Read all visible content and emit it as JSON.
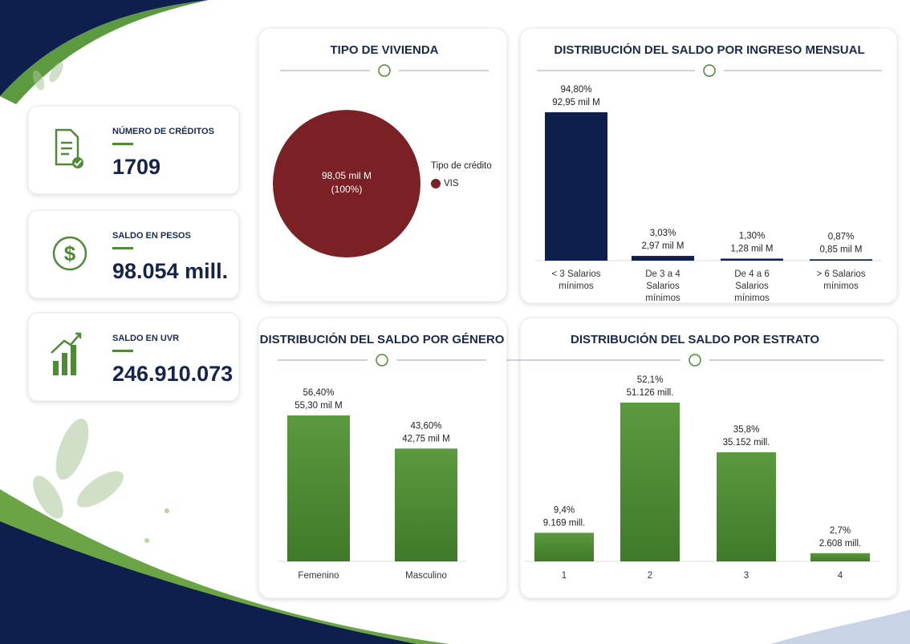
{
  "kpis": [
    {
      "label": "NÚMERO DE CRÉDITOS",
      "value": "1709"
    },
    {
      "label": "SALDO EN PESOS",
      "value": "98.054 mill."
    },
    {
      "label": "SALDO EN UVR",
      "value": "246.910.073"
    }
  ],
  "chart_data": [
    {
      "type": "pie",
      "title": "TIPO DE VIVIENDA",
      "legend_title": "Tipo de crédito",
      "categories": [
        "VIS"
      ],
      "values": [
        98.05
      ],
      "value_labels": [
        "98,05 mil M"
      ],
      "percent_labels": [
        "(100%)"
      ],
      "colors": [
        "#7b2125"
      ]
    },
    {
      "type": "bar",
      "title": "DISTRIBUCIÓN DEL SALDO POR INGRESO MENSUAL",
      "categories": [
        "< 3 Salarios mínimos",
        "De 3 a 4 Salarios mínimos",
        "De 4 a 6 Salarios mínimos",
        "> 6 Salarios mínimos"
      ],
      "values": [
        94.8,
        3.03,
        1.3,
        0.87
      ],
      "value_labels": [
        "94,80%",
        "3,03%",
        "1,30%",
        "0,87%"
      ],
      "amount_labels": [
        "92,95 mil M",
        "2,97 mil M",
        "1,28 mil M",
        "0,85 mil M"
      ],
      "color": "#0e1f4d"
    },
    {
      "type": "bar",
      "title": "DISTRIBUCIÓN DEL SALDO POR GÉNERO",
      "categories": [
        "Femenino",
        "Masculino"
      ],
      "values": [
        56.4,
        43.6
      ],
      "value_labels": [
        "56,40%",
        "43,60%"
      ],
      "amount_labels": [
        "55,30 mil M",
        "42,75 mil M"
      ],
      "color": "#4f8a35"
    },
    {
      "type": "bar",
      "title": "DISTRIBUCIÓN DEL SALDO POR ESTRATO",
      "categories": [
        "1",
        "2",
        "3",
        "4"
      ],
      "values": [
        9.4,
        52.1,
        35.8,
        2.7
      ],
      "value_labels": [
        "9,4%",
        "52,1%",
        "35,8%",
        "2,7%"
      ],
      "amount_labels": [
        "9.169 mill.",
        "51.126 mill.",
        "35.152 mill.",
        "2.608 mill."
      ],
      "color": "#4f8a35"
    }
  ]
}
